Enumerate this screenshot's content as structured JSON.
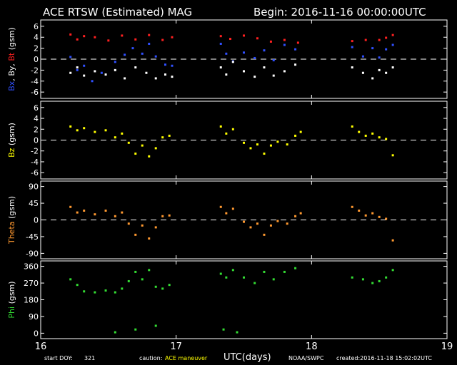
{
  "header": {
    "title": "ACE RTSW (Estimated) MAG",
    "begin": "Begin: 2016-11-16 00:00:00UTC"
  },
  "footer": {
    "start_doy_label": "start DOY:",
    "start_doy_value": "321",
    "caution_label": "caution:",
    "caution_value": "ACE maneuver",
    "agency": "NOAA/SWPC",
    "created": "created:2016-11-18 15:02:02UTC"
  },
  "colors": {
    "bx": "#3050ff",
    "by": "#ffffff",
    "bt": "#ff2020",
    "bz": "#ffff00",
    "theta": "#ff9930",
    "phi": "#33dd33",
    "caution": "#ffff00"
  },
  "chart_data": [
    {
      "type": "scatter",
      "panel": "bxbybt",
      "ylabel_parts": [
        {
          "text": "Bx",
          "color": "#3050ff"
        },
        {
          "text": ", By, ",
          "color": "#ffffff"
        },
        {
          "text": "Bt",
          "color": "#ff2020"
        },
        {
          "text": " (gsm)",
          "color": "#ffffff"
        }
      ],
      "ylim": [
        -6.5,
        6.5
      ],
      "yticks": [
        6,
        4,
        2,
        0,
        -2,
        -4,
        -6
      ],
      "ytick_labels": [
        "6",
        "4",
        "2",
        "0",
        "-2",
        "-4",
        "-6"
      ],
      "zero_line": true,
      "series": [
        {
          "name": "Bt",
          "color": "#ff2020",
          "points": [
            [
              16.22,
              4.5
            ],
            [
              16.27,
              3.6
            ],
            [
              16.32,
              4.2
            ],
            [
              16.4,
              4.0
            ],
            [
              16.5,
              3.4
            ],
            [
              16.6,
              4.3
            ],
            [
              16.7,
              3.6
            ],
            [
              16.8,
              4.4
            ],
            [
              16.9,
              3.5
            ],
            [
              16.97,
              4.0
            ],
            [
              17.33,
              4.2
            ],
            [
              17.4,
              3.7
            ],
            [
              17.5,
              4.3
            ],
            [
              17.6,
              3.8
            ],
            [
              17.7,
              3.2
            ],
            [
              17.8,
              3.5
            ],
            [
              17.9,
              3.0
            ],
            [
              18.3,
              3.3
            ],
            [
              18.4,
              3.5
            ],
            [
              18.5,
              3.5
            ],
            [
              18.55,
              3.9
            ],
            [
              18.6,
              4.4
            ]
          ]
        },
        {
          "name": "Bx",
          "color": "#3050ff",
          "points": [
            [
              16.22,
              0.4
            ],
            [
              16.27,
              -2.0
            ],
            [
              16.32,
              -1.2
            ],
            [
              16.38,
              -4.0
            ],
            [
              16.45,
              -2.5
            ],
            [
              16.55,
              -0.5
            ],
            [
              16.62,
              0.8
            ],
            [
              16.68,
              2.0
            ],
            [
              16.75,
              1.0
            ],
            [
              16.8,
              2.8
            ],
            [
              16.85,
              0.5
            ],
            [
              16.92,
              -1.0
            ],
            [
              16.97,
              -1.2
            ],
            [
              17.33,
              2.8
            ],
            [
              17.37,
              1.0
            ],
            [
              17.42,
              -0.4
            ],
            [
              17.5,
              1.2
            ],
            [
              17.58,
              0.2
            ],
            [
              17.65,
              1.6
            ],
            [
              17.72,
              -0.2
            ],
            [
              17.8,
              2.6
            ],
            [
              17.88,
              1.8
            ],
            [
              18.3,
              2.2
            ],
            [
              18.38,
              0.5
            ],
            [
              18.45,
              2.0
            ],
            [
              18.5,
              0.3
            ],
            [
              18.55,
              1.8
            ],
            [
              18.6,
              2.6
            ]
          ]
        },
        {
          "name": "By",
          "color": "#ffffff",
          "points": [
            [
              16.22,
              -2.5
            ],
            [
              16.27,
              -1.5
            ],
            [
              16.32,
              -3.0
            ],
            [
              16.4,
              -2.2
            ],
            [
              16.48,
              -2.8
            ],
            [
              16.55,
              -2.0
            ],
            [
              16.62,
              -3.5
            ],
            [
              16.7,
              -1.5
            ],
            [
              16.78,
              -2.5
            ],
            [
              16.85,
              -3.5
            ],
            [
              16.92,
              -2.8
            ],
            [
              16.97,
              -3.2
            ],
            [
              17.33,
              -1.5
            ],
            [
              17.37,
              -2.8
            ],
            [
              17.42,
              -0.5
            ],
            [
              17.5,
              -2.2
            ],
            [
              17.58,
              -3.2
            ],
            [
              17.65,
              -1.5
            ],
            [
              17.72,
              -3.0
            ],
            [
              17.8,
              -2.2
            ],
            [
              17.88,
              -1.0
            ],
            [
              18.3,
              -1.5
            ],
            [
              18.38,
              -2.5
            ],
            [
              18.45,
              -3.5
            ],
            [
              18.5,
              -2.0
            ],
            [
              18.55,
              -2.5
            ],
            [
              18.6,
              -1.5
            ]
          ]
        }
      ]
    },
    {
      "type": "scatter",
      "panel": "bz",
      "ylabel_parts": [
        {
          "text": "Bz",
          "color": "#ffff00"
        },
        {
          "text": " (gsm)",
          "color": "#ffffff"
        }
      ],
      "ylim": [
        -6.5,
        6.5
      ],
      "yticks": [
        6,
        4,
        2,
        0,
        -2,
        -4,
        -6
      ],
      "ytick_labels": [
        "6",
        "4",
        "2",
        "0",
        "-2",
        "-4",
        "-6"
      ],
      "zero_line": true,
      "series": [
        {
          "name": "Bz",
          "color": "#ffff00",
          "points": [
            [
              16.22,
              2.5
            ],
            [
              16.27,
              1.8
            ],
            [
              16.32,
              2.2
            ],
            [
              16.4,
              1.5
            ],
            [
              16.48,
              1.8
            ],
            [
              16.55,
              0.5
            ],
            [
              16.6,
              1.2
            ],
            [
              16.65,
              -0.5
            ],
            [
              16.7,
              -2.5
            ],
            [
              16.75,
              -1.0
            ],
            [
              16.8,
              -3.0
            ],
            [
              16.85,
              -1.5
            ],
            [
              16.9,
              0.5
            ],
            [
              16.95,
              0.8
            ],
            [
              17.33,
              2.5
            ],
            [
              17.37,
              1.2
            ],
            [
              17.42,
              2.0
            ],
            [
              17.5,
              -0.5
            ],
            [
              17.55,
              -1.5
            ],
            [
              17.6,
              -0.8
            ],
            [
              17.65,
              -2.5
            ],
            [
              17.7,
              -1.0
            ],
            [
              17.75,
              -0.3
            ],
            [
              17.82,
              -0.8
            ],
            [
              17.88,
              0.8
            ],
            [
              17.92,
              1.5
            ],
            [
              18.3,
              2.5
            ],
            [
              18.35,
              1.5
            ],
            [
              18.4,
              0.8
            ],
            [
              18.45,
              1.2
            ],
            [
              18.5,
              0.5
            ],
            [
              18.55,
              0.2
            ],
            [
              18.6,
              -2.8
            ]
          ]
        }
      ]
    },
    {
      "type": "scatter",
      "panel": "theta",
      "ylabel_parts": [
        {
          "text": "Theta",
          "color": "#ff9930"
        },
        {
          "text": " (gsm)",
          "color": "#ffffff"
        }
      ],
      "ylim": [
        -95,
        95
      ],
      "yticks": [
        90,
        45,
        0,
        -45,
        -90
      ],
      "ytick_labels": [
        "90",
        "45",
        "0",
        "-45",
        "-90"
      ],
      "zero_line": true,
      "series": [
        {
          "name": "Theta",
          "color": "#ff9930",
          "points": [
            [
              16.22,
              35
            ],
            [
              16.27,
              20
            ],
            [
              16.32,
              25
            ],
            [
              16.4,
              15
            ],
            [
              16.48,
              25
            ],
            [
              16.55,
              10
            ],
            [
              16.6,
              20
            ],
            [
              16.65,
              -10
            ],
            [
              16.7,
              -40
            ],
            [
              16.75,
              -15
            ],
            [
              16.8,
              -50
            ],
            [
              16.85,
              -20
            ],
            [
              16.9,
              10
            ],
            [
              16.95,
              12
            ],
            [
              17.33,
              35
            ],
            [
              17.37,
              18
            ],
            [
              17.42,
              30
            ],
            [
              17.5,
              -5
            ],
            [
              17.55,
              -20
            ],
            [
              17.6,
              -10
            ],
            [
              17.65,
              -40
            ],
            [
              17.7,
              -15
            ],
            [
              17.75,
              -3
            ],
            [
              17.82,
              -10
            ],
            [
              17.88,
              10
            ],
            [
              17.92,
              18
            ],
            [
              18.3,
              35
            ],
            [
              18.35,
              25
            ],
            [
              18.4,
              12
            ],
            [
              18.45,
              18
            ],
            [
              18.5,
              8
            ],
            [
              18.55,
              3
            ],
            [
              18.6,
              -55
            ]
          ]
        }
      ]
    },
    {
      "type": "scatter",
      "panel": "phi",
      "ylabel_parts": [
        {
          "text": "Phi",
          "color": "#33dd33"
        },
        {
          "text": " (gsm)",
          "color": "#ffffff"
        }
      ],
      "ylim": [
        -10,
        370
      ],
      "yticks": [
        360,
        270,
        180,
        90,
        0
      ],
      "ytick_labels": [
        "360",
        "270",
        "180",
        "90",
        "0"
      ],
      "zero_line": false,
      "series": [
        {
          "name": "Phi",
          "color": "#33dd33",
          "points": [
            [
              16.22,
              290
            ],
            [
              16.27,
              260
            ],
            [
              16.32,
              225
            ],
            [
              16.4,
              220
            ],
            [
              16.48,
              230
            ],
            [
              16.55,
              220
            ],
            [
              16.6,
              240
            ],
            [
              16.65,
              280
            ],
            [
              16.7,
              330
            ],
            [
              16.75,
              290
            ],
            [
              16.8,
              340
            ],
            [
              16.85,
              250
            ],
            [
              16.9,
              240
            ],
            [
              16.95,
              260
            ],
            [
              16.55,
              5
            ],
            [
              16.7,
              20
            ],
            [
              16.85,
              40
            ],
            [
              17.33,
              320
            ],
            [
              17.37,
              300
            ],
            [
              17.42,
              340
            ],
            [
              17.5,
              300
            ],
            [
              17.58,
              270
            ],
            [
              17.65,
              330
            ],
            [
              17.72,
              290
            ],
            [
              17.8,
              330
            ],
            [
              17.88,
              350
            ],
            [
              17.35,
              20
            ],
            [
              17.45,
              5
            ],
            [
              18.3,
              300
            ],
            [
              18.38,
              290
            ],
            [
              18.45,
              270
            ],
            [
              18.5,
              280
            ],
            [
              18.55,
              300
            ],
            [
              18.6,
              340
            ]
          ]
        }
      ]
    }
  ],
  "x_axis": {
    "xlim": [
      16,
      19
    ],
    "ticks": [
      16,
      17,
      18,
      19
    ],
    "tick_labels": [
      "16",
      "17",
      "18",
      "19"
    ],
    "label": "UTC(days)"
  }
}
